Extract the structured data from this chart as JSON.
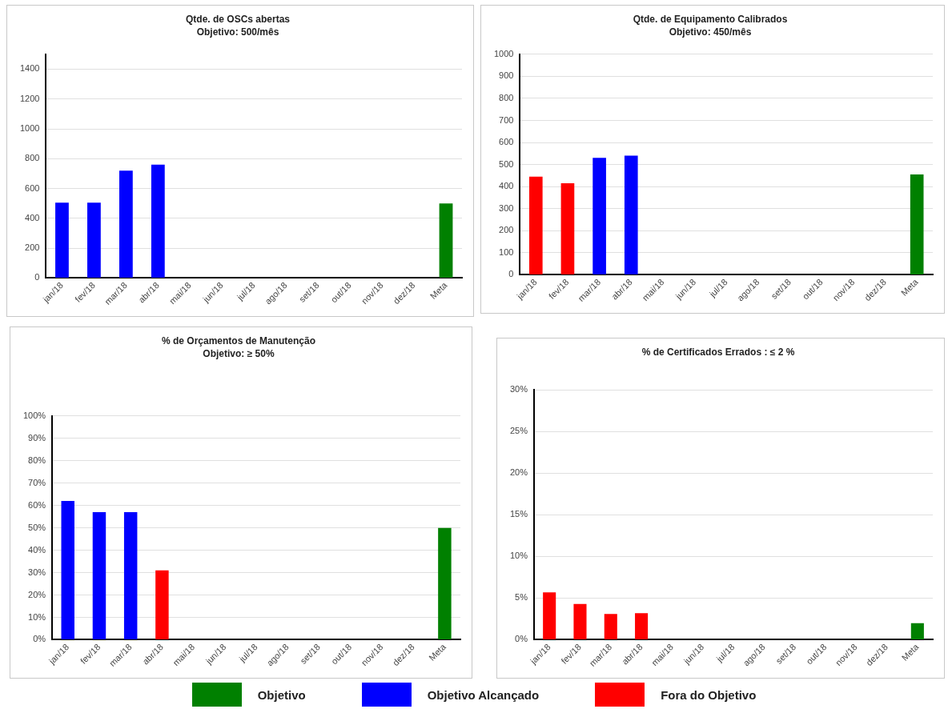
{
  "chart_data": [
    {
      "type": "bar",
      "title": "Qtde. de OSCs abertas",
      "subtitle": "Objetivo: 500/mês",
      "categories": [
        "jan/18",
        "fev/18",
        "mar/18",
        "abr/18",
        "mai/18",
        "jun/18",
        "jul/18",
        "ago/18",
        "set/18",
        "out/18",
        "nov/18",
        "dez/18",
        "Meta"
      ],
      "stacked": true,
      "ylim": [
        0,
        1500
      ],
      "yticks": [
        0,
        200,
        400,
        600,
        800,
        1000,
        1200,
        1400
      ],
      "grid": "y",
      "legend": "bottom",
      "series": [
        {
          "name": "Objetivo",
          "color": "#008000",
          "values": [
            null,
            null,
            null,
            null,
            null,
            null,
            null,
            null,
            null,
            null,
            null,
            null,
            500
          ]
        },
        {
          "name": "Objetivo Alcançado",
          "color": "#0000ff",
          "values": [
            505,
            505,
            720,
            760,
            null,
            null,
            null,
            null,
            null,
            null,
            null,
            null,
            null
          ]
        },
        {
          "name": "Fora do Objetivo",
          "color": "#ff0000",
          "values": [
            null,
            null,
            null,
            null,
            null,
            null,
            null,
            null,
            null,
            null,
            null,
            null,
            null
          ]
        }
      ]
    },
    {
      "type": "bar",
      "title": "Qtde. de Equipamento Calibrados",
      "subtitle": "Objetivo: 450/mês",
      "categories": [
        "jan/18",
        "fev/18",
        "mar/18",
        "abr/18",
        "mai/18",
        "jun/18",
        "jul/18",
        "ago/18",
        "set/18",
        "out/18",
        "nov/18",
        "dez/18",
        "Meta"
      ],
      "stacked": true,
      "ylim": [
        0,
        1000
      ],
      "yticks": [
        0,
        100,
        200,
        300,
        400,
        500,
        600,
        700,
        800,
        900,
        1000
      ],
      "grid": "y",
      "series": [
        {
          "color": "#008000",
          "values": [
            null,
            null,
            null,
            null,
            null,
            null,
            null,
            null,
            null,
            null,
            null,
            null,
            455
          ]
        },
        {
          "color": "#0000ff",
          "values": [
            null,
            null,
            530,
            540,
            null,
            null,
            null,
            null,
            null,
            null,
            null,
            null,
            null
          ]
        },
        {
          "color": "#ff0000",
          "values": [
            445,
            415,
            null,
            null,
            null,
            null,
            null,
            null,
            null,
            null,
            null,
            null,
            null
          ]
        }
      ]
    },
    {
      "type": "bar",
      "title": "% de Orçamentos de Manutenção",
      "subtitle": "Objetivo: ≥ 50%",
      "categories": [
        "jan/18",
        "fev/18",
        "mar/18",
        "abr/18",
        "mai/18",
        "jun/18",
        "jul/18",
        "ago/18",
        "set/18",
        "out/18",
        "nov/18",
        "dez/18",
        "Meta"
      ],
      "stacked": true,
      "ylim": [
        0,
        100
      ],
      "yticks": [
        {
          "value": 0,
          "label": "0%"
        },
        {
          "value": 10,
          "label": "10%"
        },
        {
          "value": 20,
          "label": "20%"
        },
        {
          "value": 30,
          "label": "30%"
        },
        {
          "value": 40,
          "label": "40%"
        },
        {
          "value": 50,
          "label": "50%"
        },
        {
          "value": 60,
          "label": "60%"
        },
        {
          "value": 70,
          "label": "70%"
        },
        {
          "value": 80,
          "label": "80%"
        },
        {
          "value": 90,
          "label": "90%"
        },
        {
          "value": 100,
          "label": "100%"
        }
      ],
      "grid": "y",
      "series": [
        {
          "color": "#008000",
          "values": [
            null,
            null,
            null,
            null,
            null,
            null,
            null,
            null,
            null,
            null,
            null,
            null,
            50
          ]
        },
        {
          "color": "#0000ff",
          "values": [
            62,
            57,
            57,
            null,
            null,
            null,
            null,
            null,
            null,
            null,
            null,
            null,
            null
          ]
        },
        {
          "color": "#ff0000",
          "values": [
            null,
            null,
            null,
            31,
            null,
            null,
            null,
            null,
            null,
            null,
            null,
            null,
            null
          ]
        }
      ]
    },
    {
      "type": "bar",
      "title": "% de Certificados Errados : ≤ 2 %",
      "categories": [
        "jan/18",
        "fev/18",
        "mar/18",
        "abr/18",
        "mai/18",
        "jun/18",
        "jul/18",
        "ago/18",
        "set/18",
        "out/18",
        "nov/18",
        "dez/18",
        "Meta"
      ],
      "stacked": true,
      "ylim": [
        0,
        30
      ],
      "yticks": [
        {
          "value": 0,
          "label": "0%"
        },
        {
          "value": 5,
          "label": "5%"
        },
        {
          "value": 10,
          "label": "10%"
        },
        {
          "value": 15,
          "label": "15%"
        },
        {
          "value": 20,
          "label": "20%"
        },
        {
          "value": 25,
          "label": "25%"
        },
        {
          "value": 30,
          "label": "30%"
        }
      ],
      "grid": "y",
      "series": [
        {
          "color": "#008000",
          "values": [
            null,
            null,
            null,
            null,
            null,
            null,
            null,
            null,
            null,
            null,
            null,
            null,
            2
          ]
        },
        {
          "color": "#0000ff",
          "values": [
            null,
            null,
            null,
            null,
            null,
            null,
            null,
            null,
            null,
            null,
            null,
            null,
            null
          ]
        },
        {
          "color": "#ff0000",
          "values": [
            5.7,
            4.3,
            3.1,
            3.2,
            null,
            null,
            null,
            null,
            null,
            null,
            null,
            null,
            null
          ]
        }
      ]
    }
  ]
}
